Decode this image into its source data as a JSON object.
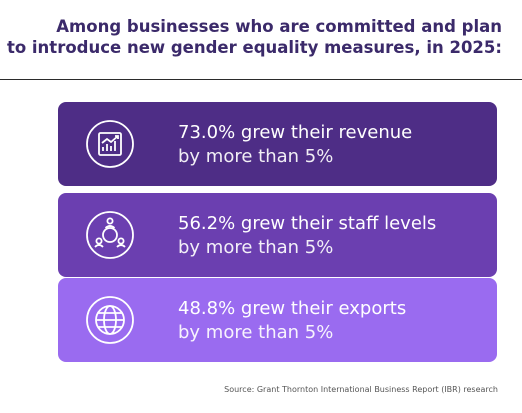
{
  "heading": {
    "line1": "Among businesses who are committed and plan",
    "line2": "to introduce new gender equality measures, in 2025:"
  },
  "cards": [
    {
      "line1": "73.0% grew their revenue",
      "line2": "by more than 5%",
      "icon": "revenue-chart-icon",
      "color": "#4e2d86"
    },
    {
      "line1": "56.2% grew their staff levels",
      "line2": "by more than 5%",
      "icon": "people-circle-icon",
      "color": "#6b3fb0"
    },
    {
      "line1": "48.8% grew their exports",
      "line2": "by more than 5%",
      "icon": "globe-icon",
      "color": "#9a6bf0"
    }
  ],
  "source": "Source: Grant Thornton International Business Report (IBR) research"
}
